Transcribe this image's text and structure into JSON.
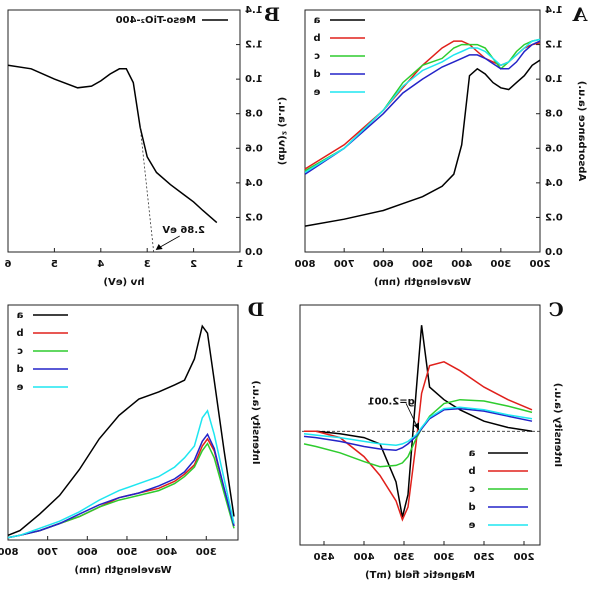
{
  "chart_data": [
    {
      "type": "line",
      "label": "A",
      "xlabel": "Wavelength (nm)",
      "ylabel": "Absorbance (a.u.)",
      "x": [
        800,
        700,
        600,
        550,
        500,
        450,
        420,
        400,
        380,
        360,
        340,
        320,
        300,
        280,
        260,
        240,
        220,
        200
      ],
      "series": [
        {
          "name": "a",
          "color": "#000000",
          "values": [
            0.15,
            0.19,
            0.24,
            0.28,
            0.32,
            0.38,
            0.45,
            0.62,
            1.02,
            1.06,
            1.03,
            0.98,
            0.95,
            0.94,
            0.98,
            1.02,
            1.08,
            1.11
          ]
        },
        {
          "name": "b",
          "color": "#e0201b",
          "values": [
            0.48,
            0.62,
            0.82,
            0.95,
            1.08,
            1.18,
            1.22,
            1.22,
            1.2,
            1.16,
            1.12,
            1.1,
            1.08,
            1.1,
            1.14,
            1.18,
            1.2,
            1.21
          ]
        },
        {
          "name": "c",
          "color": "#2ecc2e",
          "values": [
            0.47,
            0.6,
            0.82,
            0.98,
            1.08,
            1.12,
            1.18,
            1.2,
            1.2,
            1.2,
            1.18,
            1.12,
            1.06,
            1.1,
            1.16,
            1.2,
            1.22,
            1.23
          ]
        },
        {
          "name": "d",
          "color": "#2323c8",
          "values": [
            0.45,
            0.6,
            0.8,
            0.92,
            1.0,
            1.07,
            1.1,
            1.12,
            1.14,
            1.14,
            1.12,
            1.09,
            1.06,
            1.06,
            1.1,
            1.16,
            1.2,
            1.22
          ]
        },
        {
          "name": "e",
          "color": "#1ee6f0",
          "values": [
            0.46,
            0.6,
            0.82,
            0.96,
            1.05,
            1.1,
            1.14,
            1.16,
            1.18,
            1.18,
            1.16,
            1.12,
            1.08,
            1.1,
            1.14,
            1.18,
            1.22,
            1.23
          ]
        }
      ],
      "xlim": [
        200,
        800
      ],
      "xticks": [
        200,
        300,
        400,
        500,
        600,
        700,
        800
      ],
      "ylim": [
        0,
        1.4
      ],
      "yticks": [
        {
          "value": 0,
          "label": "0.0"
        },
        0.2,
        0.4,
        0.6,
        0.8,
        {
          "value": 1,
          "label": "1.0"
        },
        1.2,
        1.4
      ],
      "legend": "upper right"
    },
    {
      "type": "line",
      "label": "B",
      "xlabel": "hν (eV)",
      "ylabel": "(αhν)² (a.u.)",
      "x": [
        6.0,
        5.5,
        5.0,
        4.5,
        4.2,
        4.0,
        3.8,
        3.6,
        3.45,
        3.3,
        3.15,
        3.0,
        2.8,
        2.5,
        2.2,
        2.0,
        1.8,
        1.5
      ],
      "series": [
        {
          "name": "Meso-TiO₂-400",
          "color": "#000000",
          "values": [
            1.08,
            1.06,
            1.0,
            0.95,
            0.96,
            0.99,
            1.03,
            1.06,
            1.06,
            0.98,
            0.72,
            0.55,
            0.46,
            0.39,
            0.33,
            0.29,
            0.24,
            0.17
          ]
        }
      ],
      "xlim": [
        1,
        6
      ],
      "xticks": [
        1,
        2,
        3,
        4,
        5,
        6
      ],
      "ylim": [
        0,
        1.4
      ],
      "yticks": [
        {
          "value": 0,
          "label": "0.0"
        },
        0.2,
        0.4,
        0.6,
        0.8,
        {
          "value": 1,
          "label": "1.0"
        },
        1.2,
        1.4
      ],
      "bandgap": 2.86,
      "annotation": "2.86 eV",
      "legend": "upper left"
    },
    {
      "type": "line",
      "label": "C",
      "xlabel": "Magnetic field (mT)",
      "ylabel": "Intensity (a.u.)",
      "x": [
        190,
        220,
        250,
        280,
        300,
        318,
        328,
        335,
        345,
        352,
        360,
        380,
        400,
        430,
        460,
        475
      ],
      "series": [
        {
          "name": "a",
          "color": "#000000",
          "values": [
            0.0,
            0.03,
            0.08,
            0.17,
            0.25,
            0.35,
            0.84,
            0.3,
            -0.5,
            -0.68,
            -0.4,
            -0.1,
            -0.05,
            -0.02,
            0.0,
            0.0
          ]
        },
        {
          "name": "b",
          "color": "#e0201b",
          "values": [
            0.17,
            0.25,
            0.35,
            0.48,
            0.55,
            0.52,
            0.3,
            -0.1,
            -0.6,
            -0.7,
            -0.55,
            -0.35,
            -0.2,
            -0.05,
            0.0,
            0.0
          ]
        },
        {
          "name": "c",
          "color": "#2ecc2e",
          "values": [
            0.15,
            0.2,
            0.24,
            0.25,
            0.22,
            0.12,
            0.02,
            -0.06,
            -0.2,
            -0.25,
            -0.27,
            -0.28,
            -0.24,
            -0.17,
            -0.12,
            -0.1
          ]
        },
        {
          "name": "d",
          "color": "#2323c8",
          "values": [
            0.08,
            0.12,
            0.16,
            0.18,
            0.17,
            0.1,
            0.02,
            -0.04,
            -0.1,
            -0.13,
            -0.15,
            -0.14,
            -0.12,
            -0.08,
            -0.05,
            -0.04
          ]
        },
        {
          "name": "e",
          "color": "#1ee6f0",
          "values": [
            0.1,
            0.13,
            0.17,
            0.19,
            0.18,
            0.11,
            0.03,
            -0.03,
            -0.08,
            -0.1,
            -0.11,
            -0.1,
            -0.08,
            -0.05,
            -0.03,
            -0.02
          ]
        }
      ],
      "xlim": [
        180,
        480
      ],
      "xticks": [
        200,
        250,
        300,
        350,
        400,
        450
      ],
      "ylim": [
        -0.9,
        1.0
      ],
      "reference_line": 0,
      "annotation": "g=2.001",
      "legend": "lower left"
    },
    {
      "type": "line",
      "label": "D",
      "xlabel": "Wavelength (nm)",
      "ylabel": "Intensity (a.u.)",
      "x": [
        230,
        255,
        280,
        297,
        310,
        330,
        355,
        380,
        420,
        470,
        520,
        570,
        620,
        670,
        720,
        770,
        800
      ],
      "series": [
        {
          "name": "a",
          "color": "#000000",
          "values": [
            10,
            38,
            68,
            88,
            91,
            77,
            68,
            66,
            63,
            60,
            53,
            43,
            30,
            19,
            11,
            4,
            2
          ]
        },
        {
          "name": "b",
          "color": "#e0201b",
          "values": [
            6,
            22,
            38,
            43,
            40,
            32,
            28,
            25,
            22,
            20,
            18,
            14,
            10,
            7,
            4,
            2,
            1
          ]
        },
        {
          "name": "c",
          "color": "#2ecc2e",
          "values": [
            5,
            20,
            35,
            41,
            38,
            31,
            27,
            24,
            21,
            19,
            17,
            14,
            10,
            7,
            4,
            2,
            1
          ]
        },
        {
          "name": "d",
          "color": "#2323c8",
          "values": [
            6,
            22,
            39,
            45,
            42,
            34,
            29,
            26,
            23,
            20,
            18,
            15,
            11,
            7,
            4,
            2,
            1
          ]
        },
        {
          "name": "e",
          "color": "#1ee6f0",
          "values": [
            7,
            26,
            45,
            55,
            52,
            40,
            35,
            31,
            27,
            24,
            21,
            17,
            12,
            8,
            5,
            2,
            1
          ]
        }
      ],
      "xlim": [
        220,
        800
      ],
      "xticks": [
        300,
        400,
        500,
        600,
        700,
        800
      ],
      "ylim": [
        0,
        100
      ],
      "legend": "upper right"
    }
  ]
}
